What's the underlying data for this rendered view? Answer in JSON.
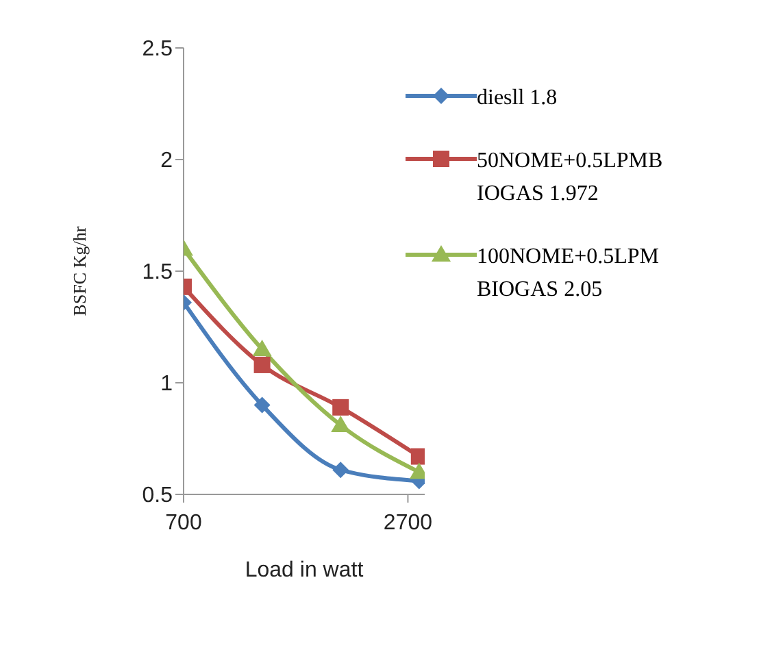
{
  "chart_data": {
    "type": "line",
    "xlabel": "Load in watt",
    "ylabel": "BSFC  Kg/hr",
    "x": [
      700,
      1400,
      2100,
      2800
    ],
    "xlim": [
      700,
      2850
    ],
    "xticks": [
      700,
      2700
    ],
    "ylim": [
      0.5,
      2.5
    ],
    "yticks": [
      0.5,
      1,
      1.5,
      2,
      2.5
    ],
    "grid": false,
    "legend": "right",
    "line_style": "solid",
    "series": [
      {
        "name": "diesll 1.8",
        "color": "#4a7ebb",
        "marker": "diamond",
        "values": [
          1.36,
          0.9,
          0.61,
          0.56
        ]
      },
      {
        "name": "50NOME+0.5LPMBIOGAS 1.972",
        "color": "#be4b48",
        "marker": "square",
        "values": [
          1.43,
          1.08,
          0.89,
          0.67
        ]
      },
      {
        "name": "100NOME+0.5LPMBIOGAS 2.05",
        "color": "#98b954",
        "marker": "triangle",
        "values": [
          1.6,
          1.15,
          0.81,
          0.6
        ]
      }
    ]
  }
}
